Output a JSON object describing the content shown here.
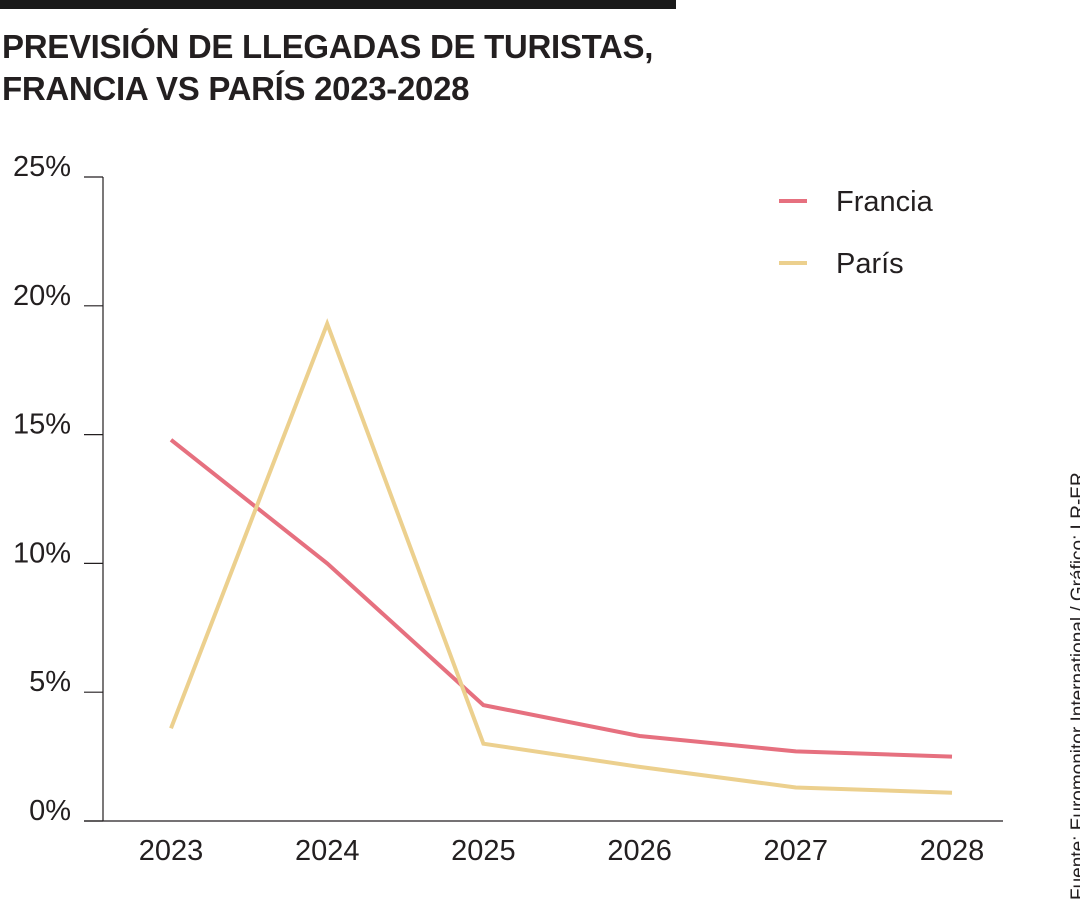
{
  "title_line1": "PREVISIÓN DE LLEGADAS DE TURISTAS,",
  "title_line2": "FRANCIA VS PARÍS 2023-2028",
  "source": "Fuente: Euromonitor International / Gráfico: LR-ER",
  "colors": {
    "francia": "#e6707f",
    "paris": "#ecd08e",
    "axis": "#231f20"
  },
  "chart_data": {
    "type": "line",
    "title": "PREVISIÓN DE LLEGADAS DE TURISTAS, FRANCIA VS PARÍS 2023-2028",
    "xlabel": "",
    "ylabel": "",
    "categories": [
      "2023",
      "2024",
      "2025",
      "2026",
      "2027",
      "2028"
    ],
    "ylim": [
      0,
      25
    ],
    "yticks": [
      0,
      5,
      10,
      15,
      20,
      25
    ],
    "ytick_labels": [
      "0%",
      "5%",
      "10%",
      "15%",
      "20%",
      "25%"
    ],
    "grid": false,
    "legend_position": "top-right",
    "series": [
      {
        "name": "Francia",
        "values": [
          14.8,
          10.0,
          4.5,
          3.3,
          2.7,
          2.5
        ]
      },
      {
        "name": "París",
        "values": [
          3.6,
          19.3,
          3.0,
          2.1,
          1.3,
          1.1
        ]
      }
    ]
  }
}
